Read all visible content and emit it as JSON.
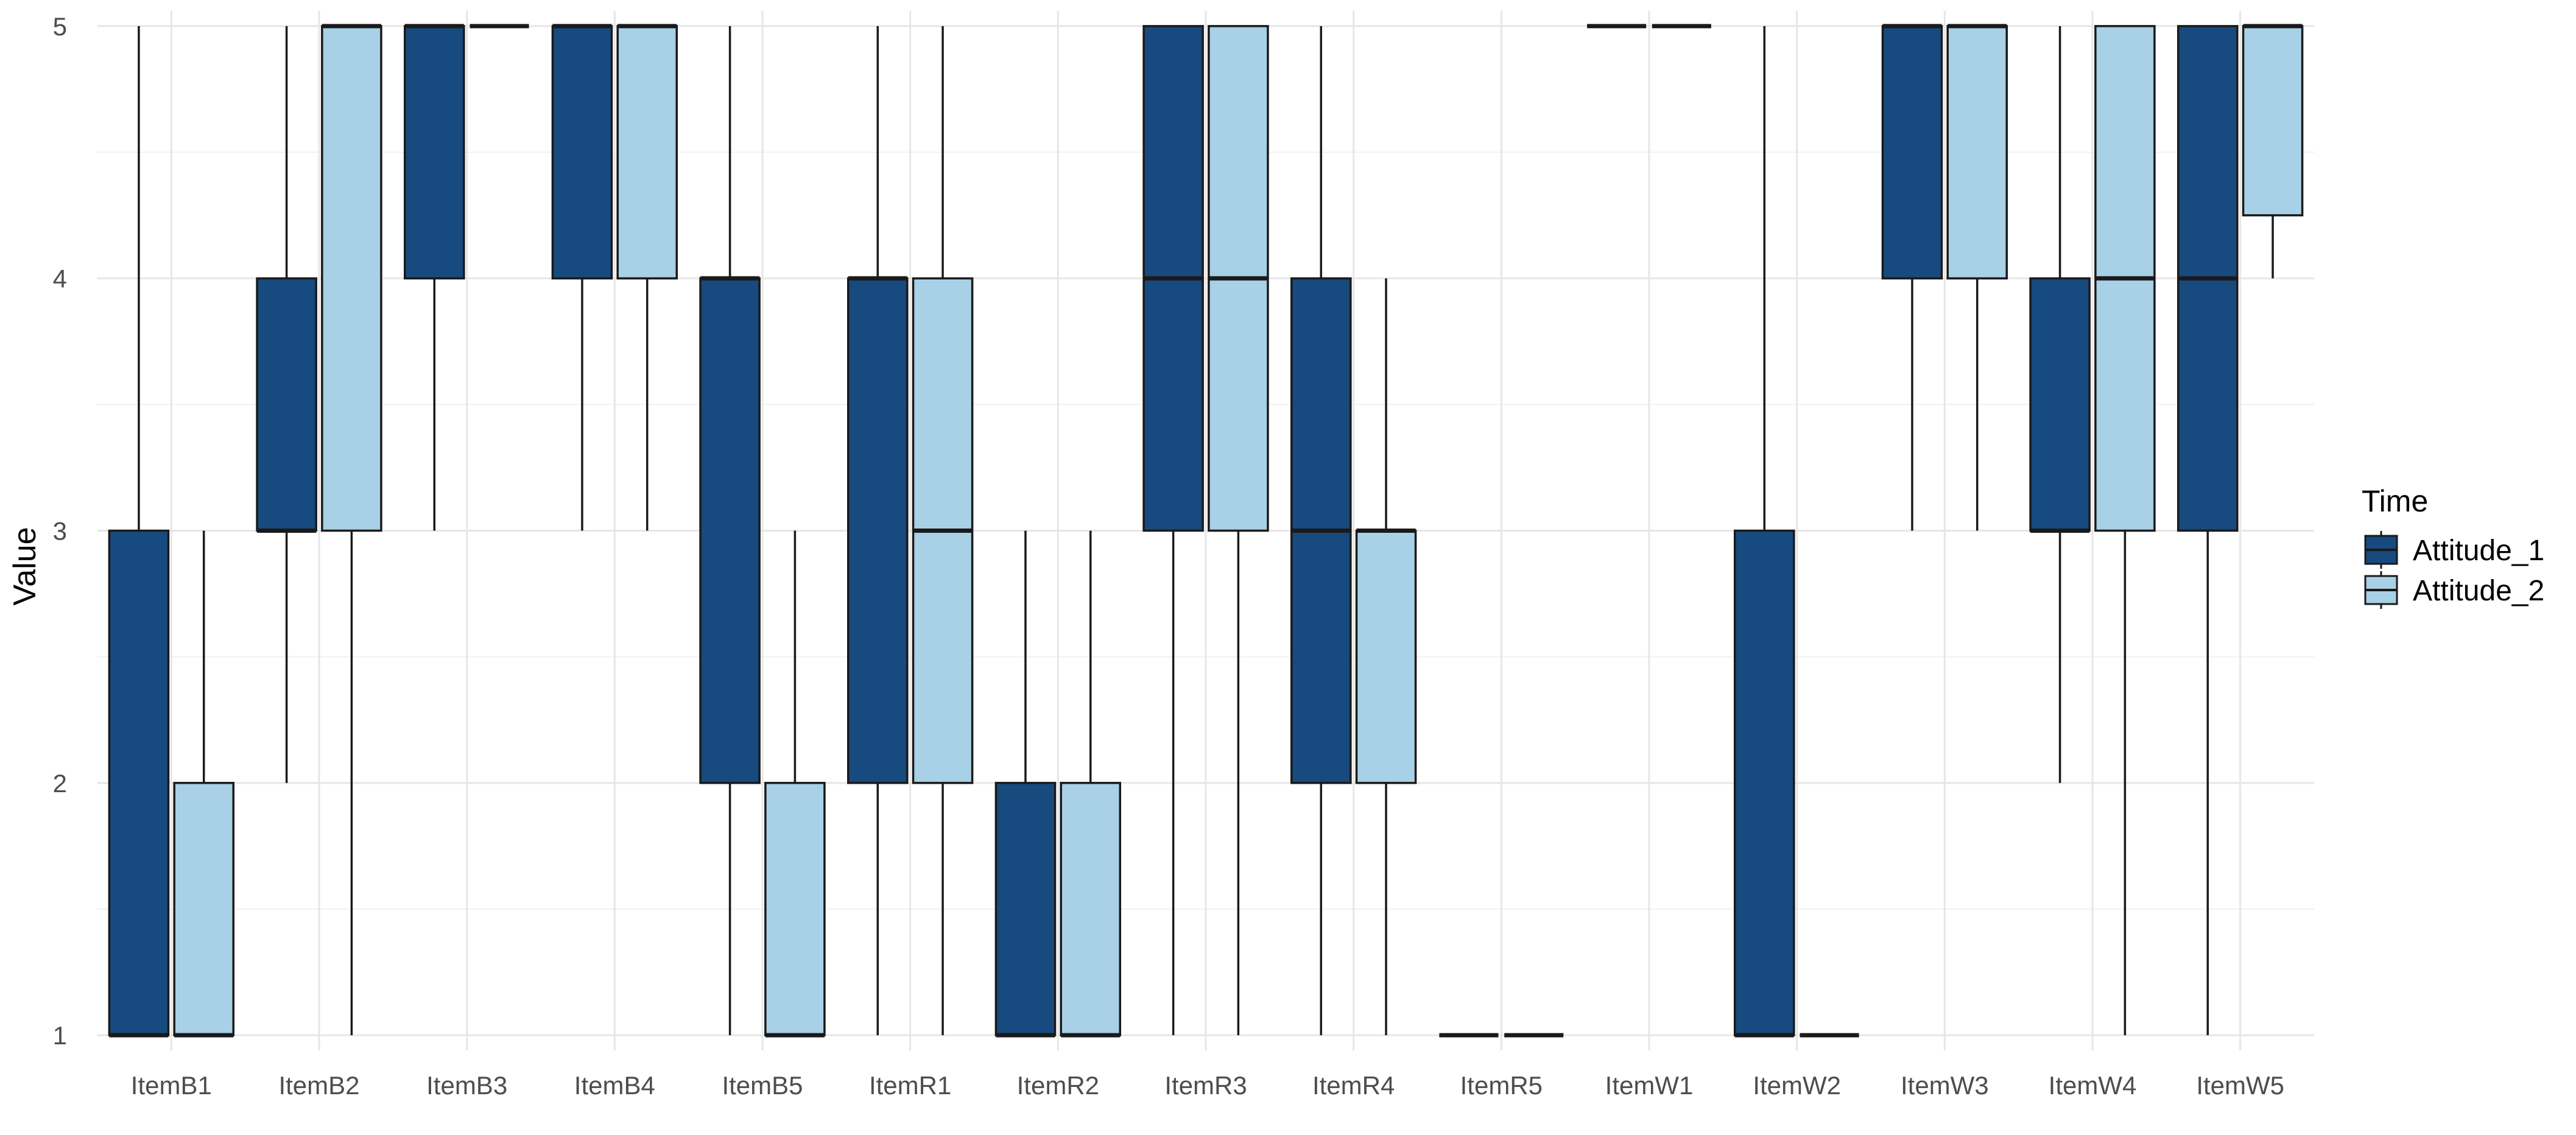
{
  "chart_data": {
    "type": "boxplot",
    "title": "",
    "xlabel": "",
    "ylabel": "Value",
    "ylim": [
      0.94,
      5.06
    ],
    "yticks": [
      1,
      2,
      3,
      4,
      5
    ],
    "grid": true,
    "legend_position": "right",
    "legend_title": "Time",
    "categories": [
      "ItemB1",
      "ItemB2",
      "ItemB3",
      "ItemB4",
      "ItemB5",
      "ItemR1",
      "ItemR2",
      "ItemR3",
      "ItemR4",
      "ItemR5",
      "ItemW1",
      "ItemW2",
      "ItemW3",
      "ItemW4",
      "ItemW5"
    ],
    "series": [
      {
        "name": "Attitude_1",
        "color": "#174a7e",
        "boxes": [
          {
            "min": 1,
            "q1": 1,
            "median": 1,
            "q3": 3,
            "max": 5
          },
          {
            "min": 2,
            "q1": 3,
            "median": 3,
            "q3": 4,
            "max": 5
          },
          {
            "min": 3,
            "q1": 4,
            "median": 5,
            "q3": 5,
            "max": 5
          },
          {
            "min": 3,
            "q1": 4,
            "median": 5,
            "q3": 5,
            "max": 5
          },
          {
            "min": 1,
            "q1": 2,
            "median": 4,
            "q3": 4,
            "max": 5
          },
          {
            "min": 1,
            "q1": 2,
            "median": 4,
            "q3": 4,
            "max": 5
          },
          {
            "min": 1,
            "q1": 1,
            "median": 1,
            "q3": 2,
            "max": 3
          },
          {
            "min": 1,
            "q1": 3,
            "median": 4,
            "q3": 5,
            "max": 5
          },
          {
            "min": 1,
            "q1": 2,
            "median": 3,
            "q3": 4,
            "max": 5
          },
          {
            "min": 1,
            "q1": 1,
            "median": 1,
            "q3": 1,
            "max": 1
          },
          {
            "min": 5,
            "q1": 5,
            "median": 5,
            "q3": 5,
            "max": 5
          },
          {
            "min": 1,
            "q1": 1,
            "median": 1,
            "q3": 3,
            "max": 5
          },
          {
            "min": 3,
            "q1": 4,
            "median": 5,
            "q3": 5,
            "max": 5
          },
          {
            "min": 2,
            "q1": 3,
            "median": 3,
            "q3": 4,
            "max": 5
          },
          {
            "min": 1,
            "q1": 3,
            "median": 4,
            "q3": 5,
            "max": 5
          }
        ]
      },
      {
        "name": "Attitude_2",
        "color": "#a8d0e6",
        "boxes": [
          {
            "min": 1,
            "q1": 1,
            "median": 1,
            "q3": 2,
            "max": 3
          },
          {
            "min": 1,
            "q1": 3,
            "median": 5,
            "q3": 5,
            "max": 5
          },
          {
            "min": 5,
            "q1": 5,
            "median": 5,
            "q3": 5,
            "max": 5
          },
          {
            "min": 3,
            "q1": 4,
            "median": 5,
            "q3": 5,
            "max": 5
          },
          {
            "min": 1,
            "q1": 1,
            "median": 1,
            "q3": 2,
            "max": 3
          },
          {
            "min": 1,
            "q1": 2,
            "median": 3,
            "q3": 4,
            "max": 5
          },
          {
            "min": 1,
            "q1": 1,
            "median": 1,
            "q3": 2,
            "max": 3
          },
          {
            "min": 1,
            "q1": 3,
            "median": 4,
            "q3": 5,
            "max": 5
          },
          {
            "min": 1,
            "q1": 2,
            "median": 3,
            "q3": 3,
            "max": 4
          },
          {
            "min": 1,
            "q1": 1,
            "median": 1,
            "q3": 1,
            "max": 1
          },
          {
            "min": 5,
            "q1": 5,
            "median": 5,
            "q3": 5,
            "max": 5
          },
          {
            "min": 1,
            "q1": 1,
            "median": 1,
            "q3": 1,
            "max": 1
          },
          {
            "min": 3,
            "q1": 4,
            "median": 5,
            "q3": 5,
            "max": 5
          },
          {
            "min": 1,
            "q1": 3,
            "median": 4,
            "q3": 5,
            "max": 5
          },
          {
            "min": 4,
            "q1": 4.25,
            "median": 5,
            "q3": 5,
            "max": 5
          }
        ]
      }
    ]
  }
}
